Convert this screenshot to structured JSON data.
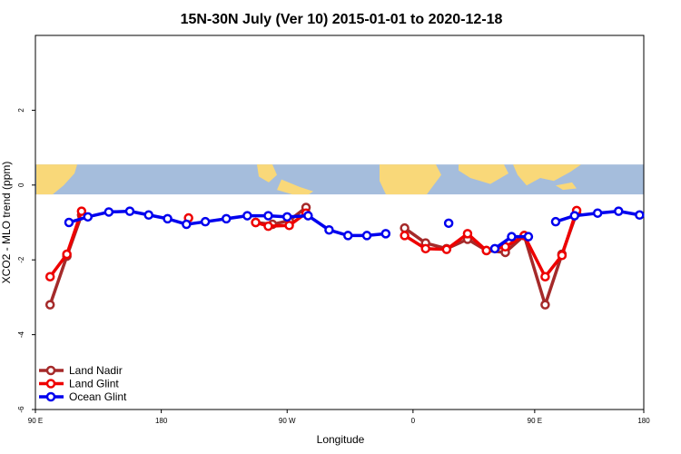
{
  "chart_data": {
    "type": "line",
    "title": "15N-30N July (Ver 10)   2015-01-01 to 2020-12-18",
    "xlabel": "Longitude",
    "ylabel": "XCO2 - MLO trend (ppm)",
    "xlim": [
      0,
      29
    ],
    "ylim": [
      -6,
      4
    ],
    "x_ticks": [
      {
        "x": 0,
        "label": "90 E"
      },
      {
        "x": 6,
        "label": "180"
      },
      {
        "x": 12,
        "label": "90 W"
      },
      {
        "x": 18,
        "label": "0"
      },
      {
        "x": 23.8,
        "label": "90 E"
      },
      {
        "x": 29,
        "label": "180"
      }
    ],
    "y_ticks": [
      {
        "y": -6,
        "label": "-6"
      },
      {
        "y": -4,
        "label": "-4"
      },
      {
        "y": -2,
        "label": "-2"
      },
      {
        "y": 0,
        "label": "0"
      },
      {
        "y": 2,
        "label": "2"
      }
    ],
    "map_strip": {
      "y_top": 0.55,
      "y_bottom": -0.25,
      "ocean_color": "#a5bddc",
      "land_color": "#f9d879"
    },
    "legend_position": "bottom-left",
    "series": [
      {
        "name": "Land Nadir",
        "color": "#a52a2a",
        "segments": [
          [
            [
              0.7,
              -3.2
            ],
            [
              1.5,
              -1.9
            ],
            [
              2.2,
              -0.8
            ]
          ],
          [
            [
              10.5,
              -1.0
            ],
            [
              11.3,
              -1.05
            ],
            [
              12.1,
              -0.95
            ],
            [
              12.9,
              -0.6
            ]
          ],
          [
            [
              17.6,
              -1.15
            ],
            [
              18.6,
              -1.55
            ],
            [
              19.6,
              -1.7
            ],
            [
              20.6,
              -1.45
            ],
            [
              21.5,
              -1.75
            ],
            [
              22.4,
              -1.8
            ],
            [
              23.3,
              -1.35
            ],
            [
              24.3,
              -3.2
            ],
            [
              25.1,
              -1.85
            ],
            [
              25.8,
              -0.75
            ]
          ]
        ]
      },
      {
        "name": "Land Glint",
        "color": "#ee0000",
        "segments": [
          [
            [
              0.7,
              -2.45
            ],
            [
              1.5,
              -1.85
            ],
            [
              2.2,
              -0.7
            ]
          ],
          [
            [
              7.3,
              -0.88
            ]
          ],
          [
            [
              10.5,
              -1.0
            ],
            [
              11.1,
              -1.1
            ],
            [
              12.1,
              -1.08
            ],
            [
              12.9,
              -0.75
            ]
          ],
          [
            [
              17.6,
              -1.35
            ],
            [
              18.6,
              -1.7
            ],
            [
              19.6,
              -1.72
            ],
            [
              20.6,
              -1.3
            ],
            [
              21.5,
              -1.75
            ],
            [
              22.4,
              -1.65
            ],
            [
              23.3,
              -1.35
            ],
            [
              24.3,
              -2.45
            ],
            [
              25.1,
              -1.88
            ],
            [
              25.8,
              -0.68
            ]
          ]
        ]
      },
      {
        "name": "Ocean Glint",
        "color": "#0000ee",
        "segments": [
          [
            [
              1.6,
              -1.0
            ],
            [
              2.5,
              -0.85
            ],
            [
              3.5,
              -0.72
            ],
            [
              4.5,
              -0.7
            ],
            [
              5.4,
              -0.8
            ],
            [
              6.3,
              -0.9
            ],
            [
              7.2,
              -1.05
            ],
            [
              8.1,
              -0.98
            ],
            [
              9.1,
              -0.9
            ],
            [
              10.1,
              -0.82
            ],
            [
              11.1,
              -0.82
            ],
            [
              12.0,
              -0.85
            ],
            [
              13.0,
              -0.82
            ],
            [
              14.0,
              -1.2
            ],
            [
              14.9,
              -1.35
            ],
            [
              15.8,
              -1.35
            ],
            [
              16.7,
              -1.3
            ]
          ],
          [
            [
              19.7,
              -1.02
            ]
          ],
          [
            [
              21.9,
              -1.7
            ],
            [
              22.7,
              -1.38
            ],
            [
              23.5,
              -1.38
            ]
          ],
          [
            [
              24.8,
              -0.98
            ],
            [
              25.7,
              -0.82
            ],
            [
              26.8,
              -0.75
            ],
            [
              27.8,
              -0.7
            ],
            [
              28.8,
              -0.8
            ]
          ]
        ]
      }
    ]
  }
}
